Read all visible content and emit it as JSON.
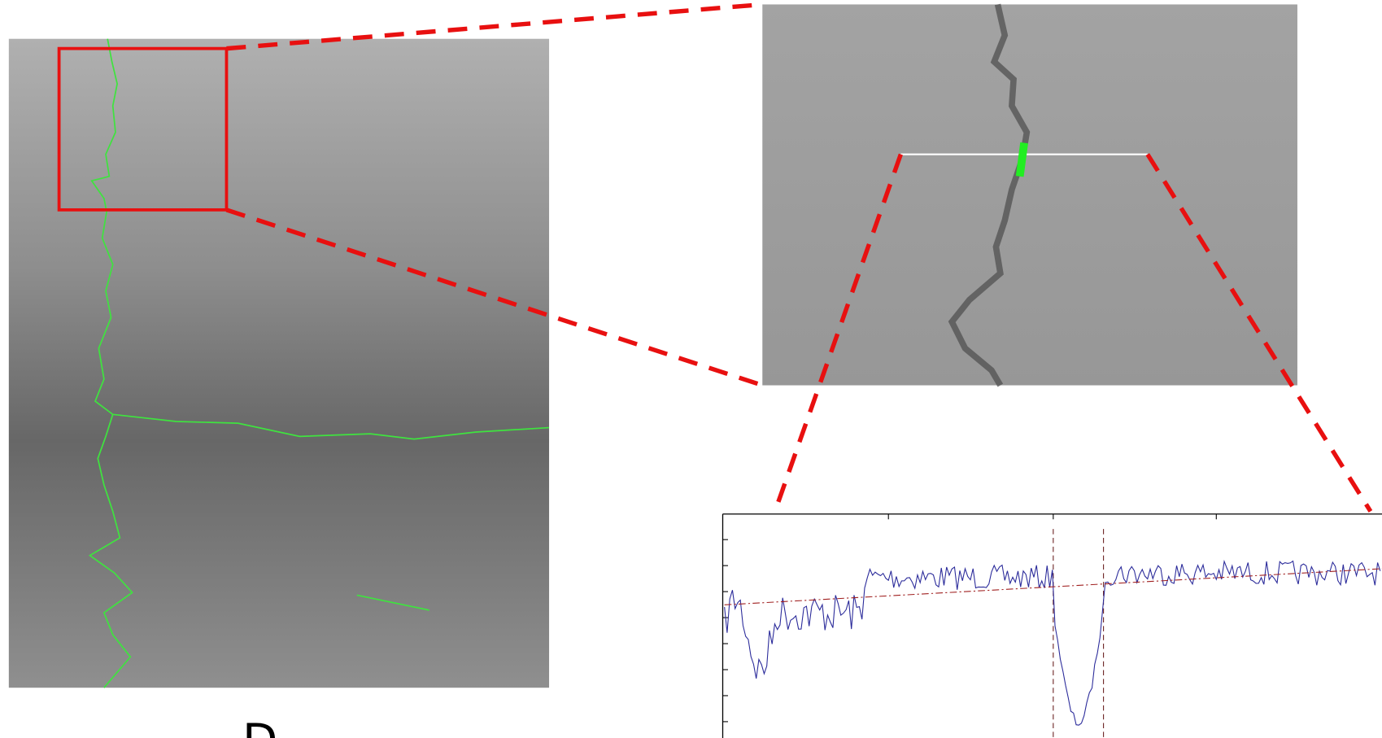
{
  "figure_label": "D"
}
